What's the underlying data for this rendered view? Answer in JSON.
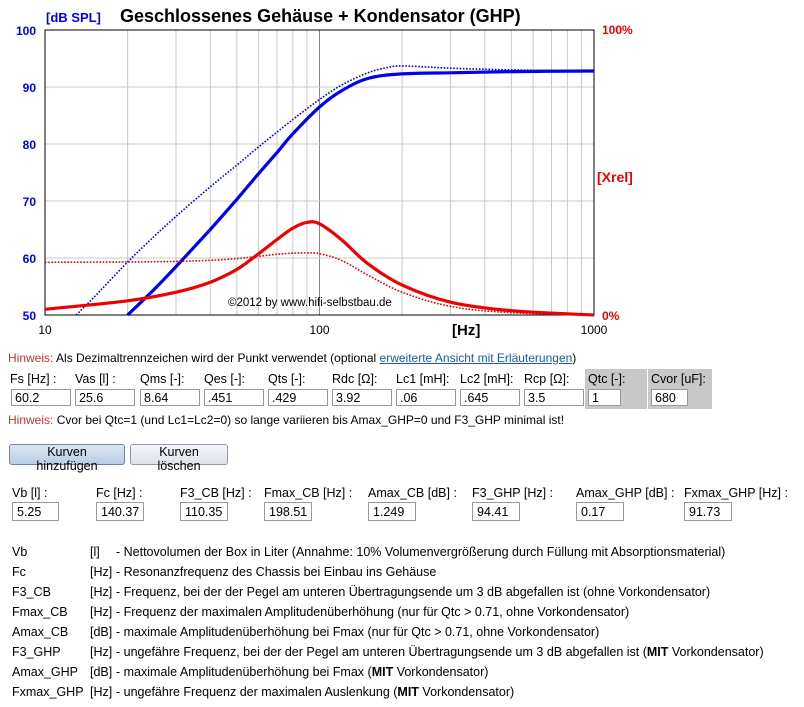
{
  "chart": {
    "title": "Geschlossenes Gehäuse + Kondensator (GHP)",
    "y_unit_label": "[dB SPL]",
    "x_unit_label": "[Hz]",
    "right_top_label": "100%",
    "right_bottom_label": "0%",
    "right_axis_label": "[Xrel]",
    "copyright": "©2012 by www.hifi-selbstbau.de",
    "y_ticks": [
      "100",
      "90",
      "80",
      "70",
      "60",
      "50"
    ],
    "x_ticks": [
      "10",
      "100",
      "1000"
    ]
  },
  "chart_data": {
    "type": "line",
    "title": "Geschlossenes Gehäuse + Kondensator (GHP)",
    "xlabel": "[Hz]",
    "ylabel": "[dB SPL]",
    "y2label": "[Xrel]",
    "x_scale": "log",
    "xlim": [
      10,
      1000
    ],
    "ylim": [
      50,
      100
    ],
    "y2lim": [
      0,
      100
    ],
    "grid": true,
    "series": [
      {
        "axis": "left",
        "color": "#0000ee",
        "style": "solid",
        "x": [
          20,
          25,
          30,
          40,
          50,
          60,
          70,
          80,
          100,
          120,
          150,
          200,
          300,
          500,
          1000
        ],
        "y": [
          50,
          54.5,
          58.5,
          65,
          70.3,
          74.8,
          78.5,
          81.8,
          86.5,
          89.3,
          91.5,
          92.3,
          92.5,
          92.7,
          92.8
        ]
      },
      {
        "axis": "left",
        "color": "#0000ee",
        "style": "dotted",
        "x": [
          13,
          15,
          20,
          25,
          30,
          40,
          50,
          60,
          80,
          100,
          120,
          150,
          180,
          200,
          250,
          300,
          500,
          1000
        ],
        "y": [
          50,
          53,
          59.3,
          63.8,
          67.3,
          72.5,
          76.3,
          79.5,
          84.3,
          87.8,
          90.3,
          92.5,
          93.5,
          93.7,
          93.5,
          93.3,
          93.0,
          92.8
        ]
      },
      {
        "axis": "right",
        "color": "#ee0000",
        "style": "solid",
        "x": [
          10,
          20,
          30,
          40,
          50,
          60,
          70,
          80,
          90,
          100,
          120,
          150,
          200,
          300,
          500,
          1000
        ],
        "y": [
          2,
          5,
          8,
          11.5,
          16,
          21.5,
          26.5,
          30.5,
          32.5,
          32,
          26.5,
          18,
          10.5,
          4.5,
          1.5,
          0
        ]
      },
      {
        "axis": "right",
        "color": "#ee0000",
        "style": "dotted",
        "x": [
          10,
          20,
          30,
          40,
          50,
          60,
          70,
          80,
          90,
          100,
          120,
          150,
          200,
          300,
          500,
          1000
        ],
        "y": [
          18.5,
          18.6,
          18.8,
          19.2,
          19.8,
          20.6,
          21.3,
          21.7,
          21.8,
          21.5,
          19.2,
          14,
          8,
          3,
          0.8,
          0
        ]
      }
    ]
  },
  "hint1": {
    "label": "Hinweis:",
    "text": " Als Dezimaltrennzeichen wird der Punkt verwendet (optional ",
    "link": "erweiterte Ansicht mit Erläuterungen",
    "end": ")"
  },
  "params": [
    {
      "label": "Fs [Hz] :",
      "value": "60.2"
    },
    {
      "label": "Vas [l] :",
      "value": "25.6"
    },
    {
      "label": "Qms [-]:",
      "value": "8.64"
    },
    {
      "label": "Qes [-]:",
      "value": ".451"
    },
    {
      "label": "Qts [-]:",
      "value": ".429"
    },
    {
      "label": "Rdc [Ω]:",
      "value": "3.92"
    },
    {
      "label": "Lc1 [mH]:",
      "value": ".06"
    },
    {
      "label": "Lc2 [mH]:",
      "value": ".645"
    },
    {
      "label": "Rcp [Ω]:",
      "value": "3.5"
    },
    {
      "label": "Qtc [-]:",
      "value": "1"
    },
    {
      "label": "Cvor [uF]:",
      "value": "680"
    }
  ],
  "hint2": {
    "label": "Hinweis:",
    "text": " Cvor bei Qtc=1 (und Lc1=Lc2=0) so lange variieren bis Amax_GHP=0 und F3_GHP minimal ist!"
  },
  "buttons": {
    "add": "Kurven hinzufügen",
    "clear": "Kurven löschen"
  },
  "results": [
    {
      "label": "Vb [l] :",
      "value": "5.25"
    },
    {
      "label": "Fc [Hz] :",
      "value": "140.37"
    },
    {
      "label": "F3_CB [Hz] :",
      "value": "110.35"
    },
    {
      "label": "Fmax_CB [Hz] :",
      "value": "198.51"
    },
    {
      "label": "Amax_CB [dB] :",
      "value": "1.249"
    },
    {
      "label": "F3_GHP [Hz] :",
      "value": "94.41"
    },
    {
      "label": "Amax_GHP [dB] :",
      "value": "0.17"
    },
    {
      "label": "Fxmax_GHP [Hz] :",
      "value": "91.73"
    }
  ],
  "legend": [
    {
      "key": "Vb",
      "unit": "[l]",
      "desc": "- Nettovolumen der Box in Liter (Annahme: 10% Volumenvergrößerung durch Füllung mit Absorptionsmaterial)"
    },
    {
      "key": "Fc",
      "unit": "[Hz]",
      "desc": "- Resonanzfrequenz des Chassis bei Einbau ins Gehäuse"
    },
    {
      "key": "F3_CB",
      "unit": "[Hz]",
      "desc": "- Frequenz, bei der der Pegel am unteren Übertragungsende um 3 dB abgefallen ist (ohne Vorkondensator)"
    },
    {
      "key": "Fmax_CB",
      "unit": "[Hz]",
      "desc": "- Frequenz der maximalen Amplitudenüberhöhung (nur für Qtc > 0.71, ohne Vorkondensator)"
    },
    {
      "key": "Amax_CB",
      "unit": "[dB]",
      "desc": "- maximale Amplitudenüberhöhung bei Fmax (nur für Qtc > 0.71, ohne Vorkondensator)"
    },
    {
      "key": "F3_GHP",
      "unit": "[Hz]",
      "desc": "- ungefähre Frequenz, bei der der Pegel am unteren Übertragungsende um 3 dB abgefallen ist (MIT Vorkondensator)"
    },
    {
      "key": "Amax_GHP",
      "unit": "[dB]",
      "desc": "- maximale Amplitudenüberhöhung bei Fmax (MIT Vorkondensator)"
    },
    {
      "key": "Fxmax_GHP",
      "unit": "[Hz]",
      "desc": "- ungefähre Frequenz der maximalen Auslenkung (MIT Vorkondensator)"
    }
  ]
}
